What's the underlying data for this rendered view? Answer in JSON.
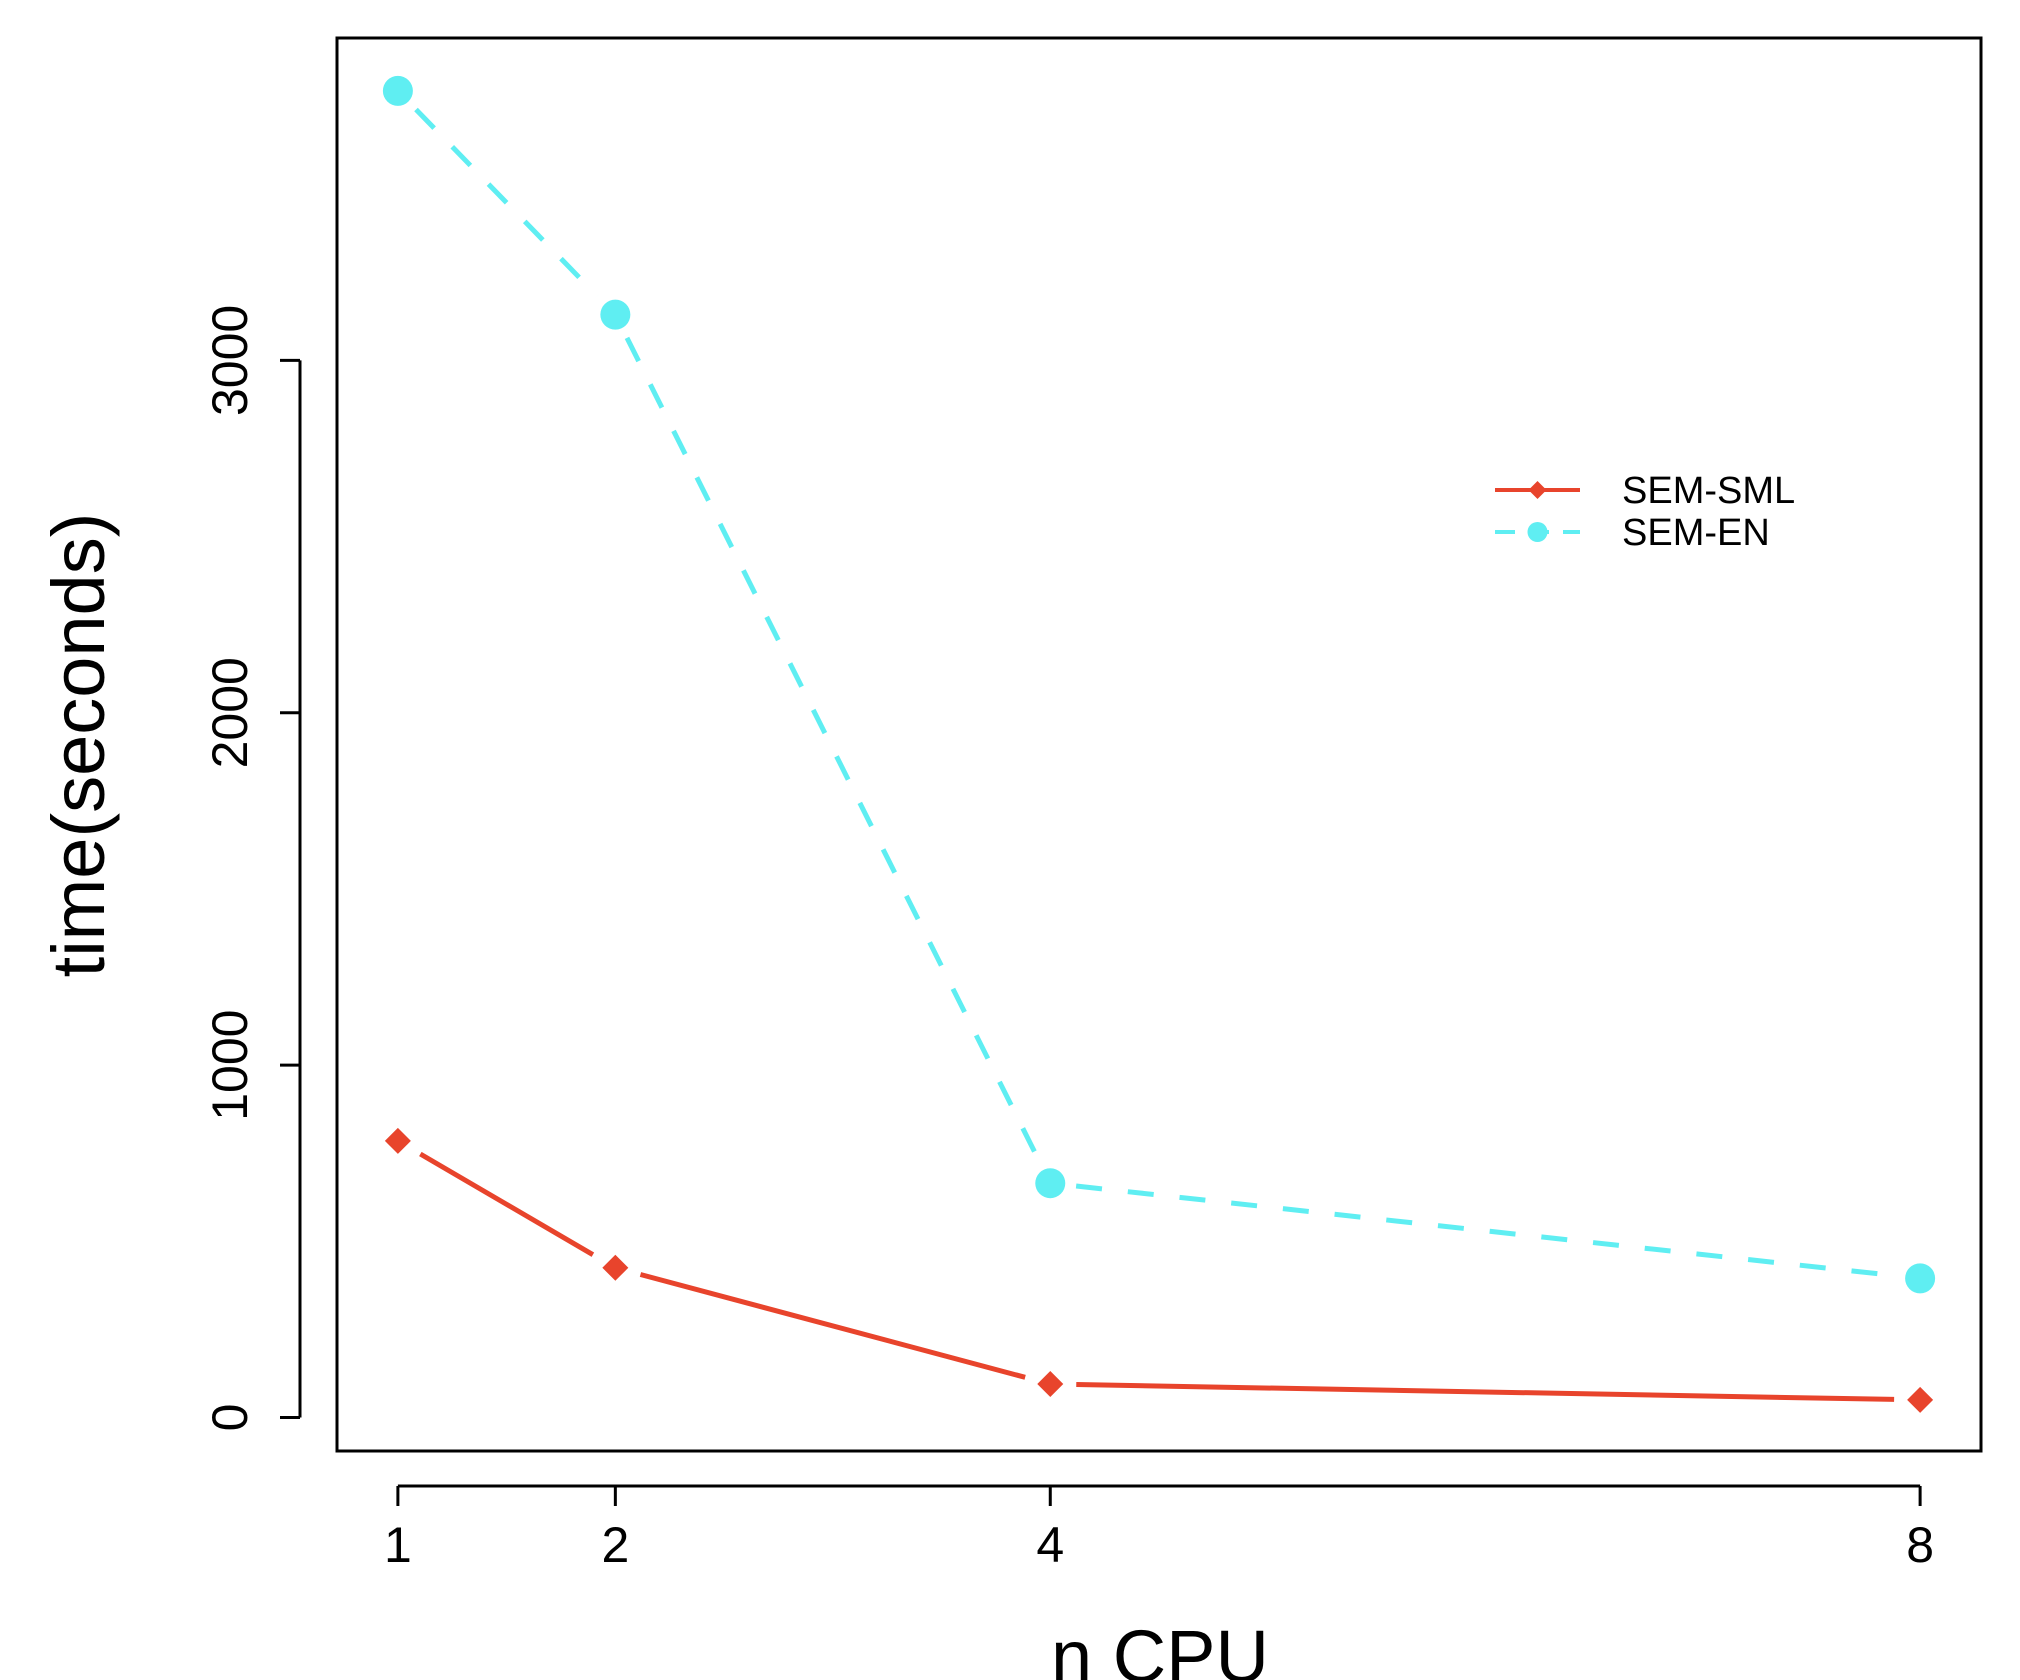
{
  "chart_data": {
    "type": "line",
    "title": "",
    "xlabel": "n CPU",
    "ylabel": "time(seconds)",
    "x": [
      1,
      2,
      4,
      8
    ],
    "x_tick_labels": [
      "1",
      "2",
      "4",
      "8"
    ],
    "y_ticks": [
      0,
      1000,
      2000,
      3000
    ],
    "y_tick_labels": [
      "0",
      "1000",
      "2000",
      "3000"
    ],
    "xlim": [
      0.72,
      8.28
    ],
    "ylim": [
      -95,
      3915
    ],
    "grid": false,
    "legend_position": "top-right",
    "series": [
      {
        "name": "SEM-SML",
        "values": [
          785,
          425,
          95,
          50
        ],
        "color": "#e8442c",
        "line": "solid",
        "marker": "diamond"
      },
      {
        "name": "SEM-EN",
        "values": [
          3765,
          3130,
          665,
          395
        ],
        "color": "#5feef2",
        "line": "dashed",
        "marker": "circle"
      }
    ]
  }
}
